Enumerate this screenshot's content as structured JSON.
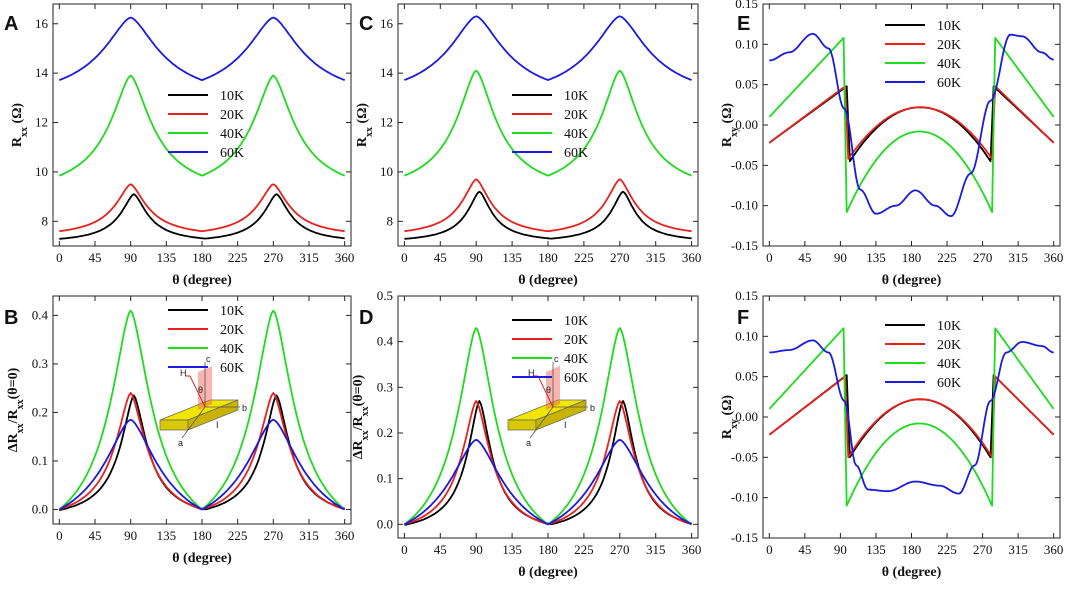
{
  "colors": {
    "10K": "#000000",
    "20K": "#e8211d",
    "40K": "#1ddb1d",
    "60K": "#1a1ae0"
  },
  "inset_labels": {
    "c": "c",
    "H": "H",
    "theta": "θ",
    "b": "b",
    "a": "a",
    "I": "I"
  },
  "chart_data": [
    {
      "panel": "A",
      "type": "line",
      "xlabel": "θ (degree)",
      "ylabel": [
        "R",
        "xx",
        " (Ω)"
      ],
      "xlim": [
        -8,
        368
      ],
      "ylim": [
        7.0,
        16.8
      ],
      "xticks": [
        "0",
        "45",
        "90",
        "135",
        "180",
        "225",
        "270",
        "315",
        "360"
      ],
      "yticks": [
        "8",
        "10",
        "12",
        "14",
        "16"
      ],
      "legend": [
        "10K",
        "20K",
        "40K",
        "60K"
      ],
      "inset": false,
      "series": [
        {
          "name": "10K",
          "shape": "cusp",
          "base": 7.3,
          "peak": 9.1,
          "peak_offset": 4,
          "width": 22
        },
        {
          "name": "20K",
          "shape": "cusp",
          "base": 7.6,
          "peak": 9.5,
          "peak_offset": 0,
          "width": 26
        },
        {
          "name": "40K",
          "shape": "cusp",
          "base": 9.85,
          "peak": 13.9,
          "peak_offset": 0,
          "width": 35
        },
        {
          "name": "60K",
          "shape": "cusp",
          "base": 13.72,
          "peak": 16.25,
          "peak_offset": 0,
          "width": 48
        }
      ]
    },
    {
      "panel": "B",
      "type": "line",
      "xlabel": "θ (degree)",
      "ylabel": [
        "ΔR",
        "xx",
        "/R",
        "xx",
        "(θ=0)"
      ],
      "xlim": [
        -8,
        368
      ],
      "ylim": [
        -0.03,
        0.44
      ],
      "xticks": [
        "0",
        "45",
        "90",
        "135",
        "180",
        "225",
        "270",
        "315",
        "360"
      ],
      "yticks": [
        "0.0",
        "0.1",
        "0.2",
        "0.3",
        "0.4"
      ],
      "legend": [
        "10K",
        "20K",
        "40K",
        "60K"
      ],
      "inset": true,
      "series": [
        {
          "name": "10K",
          "shape": "cusp",
          "base": 0.0,
          "peak": 0.235,
          "peak_offset": 4,
          "width": 22
        },
        {
          "name": "20K",
          "shape": "cusp",
          "base": 0.0,
          "peak": 0.24,
          "peak_offset": 0,
          "width": 26
        },
        {
          "name": "40K",
          "shape": "cusp",
          "base": 0.0,
          "peak": 0.41,
          "peak_offset": 0,
          "width": 35
        },
        {
          "name": "60K",
          "shape": "cusp",
          "base": 0.0,
          "peak": 0.185,
          "peak_offset": 0,
          "width": 48
        }
      ]
    },
    {
      "panel": "C",
      "type": "line",
      "xlabel": "θ (degree)",
      "ylabel": [
        "R",
        "xx",
        " (Ω)"
      ],
      "xlim": [
        -8,
        368
      ],
      "ylim": [
        7.0,
        16.8
      ],
      "xticks": [
        "0",
        "45",
        "90",
        "135",
        "180",
        "225",
        "270",
        "315",
        "360"
      ],
      "yticks": [
        "8",
        "10",
        "12",
        "14",
        "16"
      ],
      "legend": [
        "10K",
        "20K",
        "40K",
        "60K"
      ],
      "inset": false,
      "series": [
        {
          "name": "10K",
          "shape": "cusp",
          "base": 7.3,
          "peak": 9.2,
          "peak_offset": 4,
          "width": 20
        },
        {
          "name": "20K",
          "shape": "cusp",
          "base": 7.6,
          "peak": 9.7,
          "peak_offset": 0,
          "width": 24
        },
        {
          "name": "40K",
          "shape": "cusp",
          "base": 9.85,
          "peak": 14.1,
          "peak_offset": 0,
          "width": 33
        },
        {
          "name": "60K",
          "shape": "cusp",
          "base": 13.72,
          "peak": 16.3,
          "peak_offset": 0,
          "width": 48
        }
      ]
    },
    {
      "panel": "D",
      "type": "line",
      "xlabel": "θ (degree)",
      "ylabel": [
        "ΔR",
        "xx",
        "/R",
        "xx",
        "(θ=0)"
      ],
      "xlim": [
        -8,
        368
      ],
      "ylim": [
        -0.03,
        0.5
      ],
      "xticks": [
        "0",
        "45",
        "90",
        "135",
        "180",
        "225",
        "270",
        "315",
        "360"
      ],
      "yticks": [
        "0.0",
        "0.1",
        "0.2",
        "0.3",
        "0.4",
        "0.5"
      ],
      "legend": [
        "10K",
        "20K",
        "40K",
        "60K"
      ],
      "inset": true,
      "series": [
        {
          "name": "10K",
          "shape": "cusp",
          "base": 0.0,
          "peak": 0.27,
          "peak_offset": 4,
          "width": 20
        },
        {
          "name": "20K",
          "shape": "cusp",
          "base": 0.0,
          "peak": 0.27,
          "peak_offset": 0,
          "width": 24
        },
        {
          "name": "40K",
          "shape": "cusp",
          "base": 0.0,
          "peak": 0.43,
          "peak_offset": 0,
          "width": 33
        },
        {
          "name": "60K",
          "shape": "cusp",
          "base": 0.0,
          "peak": 0.185,
          "peak_offset": 0,
          "width": 48
        }
      ]
    },
    {
      "panel": "E",
      "type": "line",
      "xlabel": "θ (degree)",
      "ylabel": [
        "R",
        "xy",
        " (Ω)"
      ],
      "xlim": [
        -8,
        368
      ],
      "ylim": [
        -0.15,
        0.15
      ],
      "xticks": [
        "0",
        "45",
        "90",
        "135",
        "180",
        "225",
        "270",
        "315",
        "360"
      ],
      "yticks": [
        "-0.15",
        "-0.10",
        "-0.05",
        "0.00",
        "0.05",
        "0.10",
        "0.15"
      ],
      "legend": [
        "10K",
        "20K",
        "40K",
        "60K"
      ],
      "inset": false,
      "series": [
        {
          "name": "10K",
          "shape": "hall",
          "a": -0.022,
          "b": 0.022,
          "c": 0.048,
          "d": -0.045,
          "x1": 102,
          "x2": 280
        },
        {
          "name": "20K",
          "shape": "hall",
          "a": -0.022,
          "b": 0.022,
          "c": 0.048,
          "d": -0.042,
          "x1": 100,
          "x2": 282
        },
        {
          "name": "40K",
          "shape": "hall",
          "a": 0.01,
          "b": -0.008,
          "c": 0.108,
          "d": -0.108,
          "x1": 98,
          "x2": 282
        },
        {
          "name": "60K",
          "shape": "points",
          "x": [
            0,
            25,
            55,
            75,
            95,
            115,
            135,
            160,
            185,
            210,
            230,
            255,
            280,
            305,
            320,
            345,
            360
          ],
          "y": [
            0.08,
            0.09,
            0.113,
            0.095,
            0.02,
            -0.08,
            -0.11,
            -0.1,
            -0.081,
            -0.1,
            -0.113,
            -0.06,
            0.03,
            0.112,
            0.11,
            0.09,
            0.081
          ]
        }
      ]
    },
    {
      "panel": "F",
      "type": "line",
      "xlabel": "θ (degree)",
      "ylabel": [
        "R",
        "xy",
        " (Ω)"
      ],
      "xlim": [
        -8,
        368
      ],
      "ylim": [
        -0.15,
        0.15
      ],
      "xticks": [
        "0",
        "45",
        "90",
        "135",
        "180",
        "225",
        "270",
        "315",
        "360"
      ],
      "yticks": [
        "-0.15",
        "-0.10",
        "-0.05",
        "0.00",
        "0.05",
        "0.10",
        "0.15"
      ],
      "legend": [
        "10K",
        "20K",
        "40K",
        "60K"
      ],
      "inset": false,
      "series": [
        {
          "name": "10K",
          "shape": "hall",
          "a": -0.022,
          "b": 0.022,
          "c": 0.052,
          "d": -0.05,
          "x1": 102,
          "x2": 280
        },
        {
          "name": "20K",
          "shape": "hall",
          "a": -0.022,
          "b": 0.022,
          "c": 0.05,
          "d": -0.05,
          "x1": 100,
          "x2": 282
        },
        {
          "name": "40K",
          "shape": "hall",
          "a": 0.01,
          "b": -0.008,
          "c": 0.11,
          "d": -0.11,
          "x1": 98,
          "x2": 282
        },
        {
          "name": "60K",
          "shape": "points",
          "x": [
            0,
            25,
            55,
            75,
            95,
            110,
            125,
            150,
            185,
            215,
            240,
            260,
            280,
            300,
            320,
            345,
            360
          ],
          "y": [
            0.08,
            0.083,
            0.095,
            0.08,
            0.02,
            -0.06,
            -0.09,
            -0.092,
            -0.08,
            -0.085,
            -0.095,
            -0.06,
            0.02,
            0.08,
            0.093,
            0.088,
            0.08
          ]
        }
      ]
    }
  ]
}
